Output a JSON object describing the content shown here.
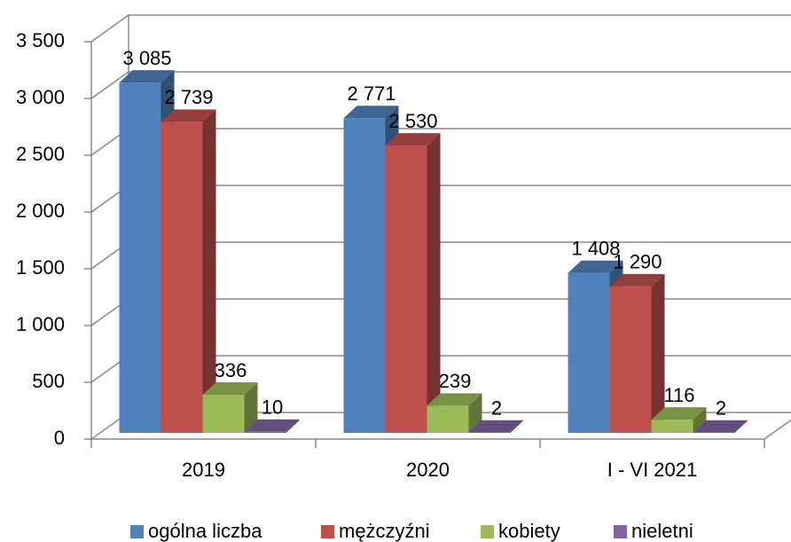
{
  "chart_data": {
    "type": "bar3d",
    "categories": [
      "2019",
      "2020",
      "I - VI 2021"
    ],
    "series": [
      {
        "name": "ogólna liczba",
        "color": "#4f81bd",
        "values": [
          3085,
          2771,
          1408
        ],
        "value_labels": [
          "3 085",
          "2 771",
          "1 408"
        ]
      },
      {
        "name": "mężczyźni",
        "color": "#c0504d",
        "values": [
          2739,
          2530,
          1290
        ],
        "value_labels": [
          "2 739",
          "2 530",
          "1 290"
        ]
      },
      {
        "name": "kobiety",
        "color": "#9bbb59",
        "values": [
          336,
          239,
          116
        ]
      },
      {
        "name": "nieletni",
        "color": "#8064a2",
        "values": [
          10,
          2,
          2
        ]
      }
    ],
    "ylim": [
      0,
      3500
    ],
    "yticks": [
      0,
      500,
      {
        "value": 1000,
        "label": "1 000"
      },
      {
        "value": 1500,
        "label": "1 500"
      },
      {
        "value": 2000,
        "label": "2 000"
      },
      {
        "value": 2500,
        "label": "2 500"
      },
      {
        "value": 3000,
        "label": "3 000"
      },
      {
        "value": 3500,
        "label": "3 500"
      }
    ],
    "grid": true,
    "legend": "bottom"
  }
}
